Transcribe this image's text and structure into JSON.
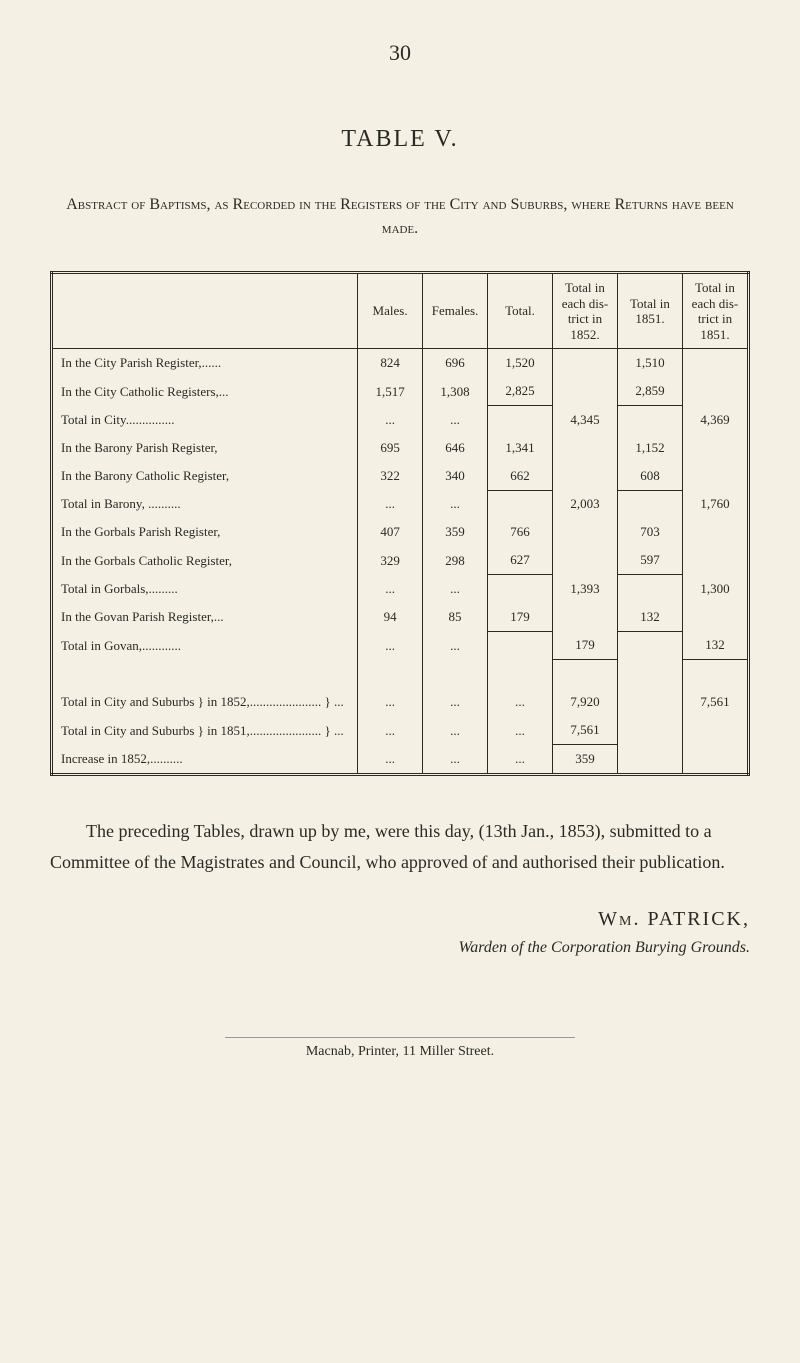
{
  "page_number": "30",
  "table_title": "TABLE V.",
  "abstract": "Abstract of Baptisms, as Recorded in the Registers of the City and Suburbs, where Returns have been made.",
  "headers": {
    "c1": "",
    "c2": "Males.",
    "c3": "Females.",
    "c4": "Total.",
    "c5": "Total in each dis- trict in 1852.",
    "c6": "Total in 1851.",
    "c7": "Total in each dis- trict in 1851."
  },
  "rows": [
    {
      "label": "In the City Parish Register,......",
      "m": "824",
      "f": "696",
      "t": "1,520",
      "d52": "",
      "t51": "1,510",
      "d51": ""
    },
    {
      "label": "In the City Catholic Registers,...",
      "m": "1,517",
      "f": "1,308",
      "t": "2,825",
      "d52": "",
      "t51": "2,859",
      "d51": ""
    },
    {
      "label": "             Total in City...............",
      "m": "...",
      "f": "...",
      "t": "",
      "d52": "4,345",
      "t51": "",
      "d51": "4,369"
    },
    {
      "label": "In the Barony Parish Register,",
      "m": "695",
      "f": "646",
      "t": "1,341",
      "d52": "",
      "t51": "1,152",
      "d51": ""
    },
    {
      "label": "In the Barony Catholic Register,",
      "m": "322",
      "f": "340",
      "t": "662",
      "d52": "",
      "t51": "608",
      "d51": ""
    },
    {
      "label": "             Total in Barony, ..........",
      "m": "...",
      "f": "...",
      "t": "",
      "d52": "2,003",
      "t51": "",
      "d51": "1,760"
    },
    {
      "label": "In the Gorbals Parish Register,",
      "m": "407",
      "f": "359",
      "t": "766",
      "d52": "",
      "t51": "703",
      "d51": ""
    },
    {
      "label": "In the Gorbals Catholic Register,",
      "m": "329",
      "f": "298",
      "t": "627",
      "d52": "",
      "t51": "597",
      "d51": ""
    },
    {
      "label": "             Total in Gorbals,.........",
      "m": "...",
      "f": "...",
      "t": "",
      "d52": "1,393",
      "t51": "",
      "d51": "1,300"
    },
    {
      "label": "In the Govan Parish Register,...",
      "m": "94",
      "f": "85",
      "t": "179",
      "d52": "",
      "t51": "132",
      "d51": ""
    },
    {
      "label": "             Total in Govan,............",
      "m": "...",
      "f": "...",
      "t": "",
      "d52": "179",
      "t51": "",
      "d51": "132"
    }
  ],
  "summary": [
    {
      "label": "Total in City and Suburbs }\n   in 1852,...................... } ...",
      "m": "...",
      "f": "...",
      "t": "...",
      "d52": "7,920",
      "t51": "",
      "d51": "7,561"
    },
    {
      "label": "Total in City and Suburbs }\n   in 1851,...................... } ...",
      "m": "...",
      "f": "...",
      "t": "...",
      "d52": "7,561",
      "t51": "",
      "d51": ""
    },
    {
      "label": "          Increase in 1852,..........",
      "m": "...",
      "f": "...",
      "t": "...",
      "d52": "359",
      "t51": "",
      "d51": ""
    }
  ],
  "body_text": "The preceding Tables, drawn up by me, were this day, (13th Jan., 1853), submitted to a Committee of the Magistrates and Council, who approved of and authorised their publication.",
  "signature": "Wm. PATRICK,",
  "signature_sub": "Warden of the Corporation Burying Grounds.",
  "footer": "Macnab, Printer, 11 Miller Street."
}
